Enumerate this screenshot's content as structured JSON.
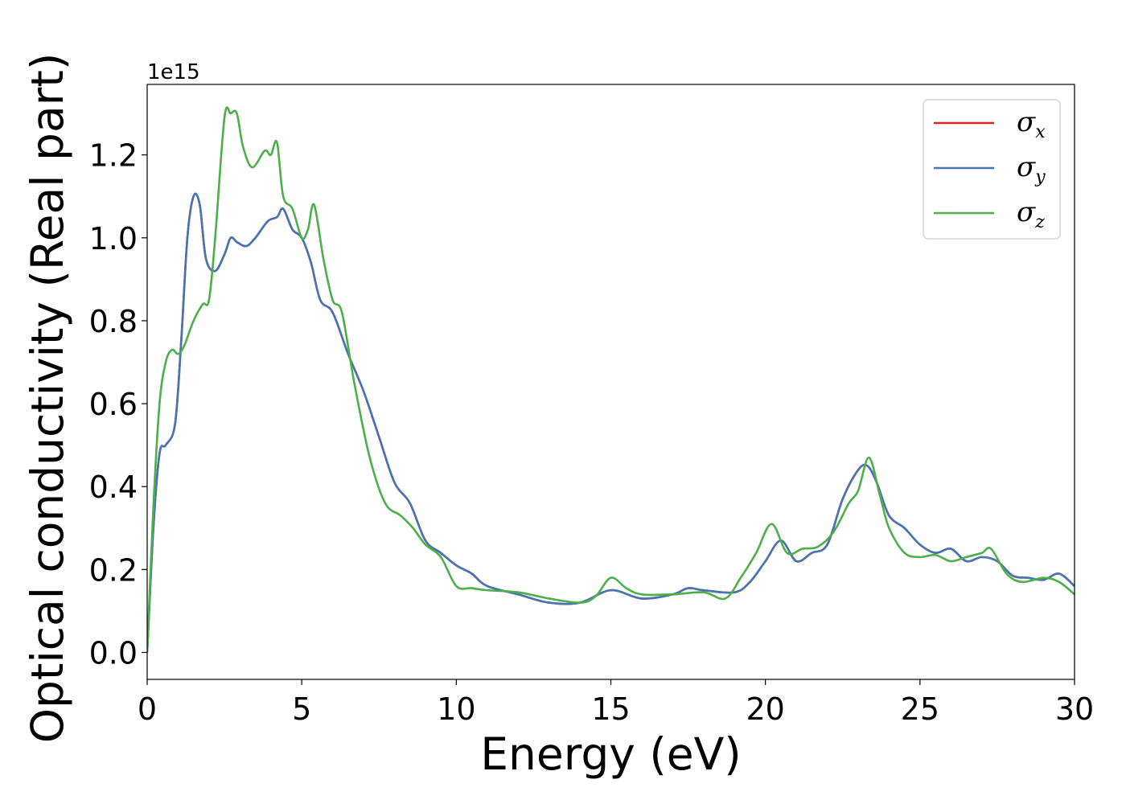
{
  "chart_data": {
    "type": "line",
    "title": "",
    "xlabel": "Energy (eV)",
    "ylabel": "Optical conductivity (Real part)",
    "y_offset_text": "1e15",
    "xlim": [
      0,
      30
    ],
    "ylim": [
      -0.065,
      1.37
    ],
    "x_ticks": [
      0,
      5,
      10,
      15,
      20,
      25,
      30
    ],
    "x_tick_labels": [
      "0",
      "5",
      "10",
      "15",
      "20",
      "25",
      "30"
    ],
    "y_ticks": [
      0.0,
      0.2,
      0.4,
      0.6,
      0.8,
      1.0,
      1.2
    ],
    "y_tick_labels": [
      "0.0",
      "0.2",
      "0.4",
      "0.6",
      "0.8",
      "1.0",
      "1.2"
    ],
    "grid": false,
    "legend_position": "top-right",
    "series": [
      {
        "name": "σx",
        "legend_symbol": "σ",
        "legend_subscript": "x",
        "color": "#d62728",
        "x": [
          0,
          0.2,
          0.4,
          0.6,
          0.9,
          1.1,
          1.3,
          1.5,
          1.7,
          1.9,
          2.2,
          2.5,
          2.7,
          2.9,
          3.2,
          3.5,
          3.9,
          4.2,
          4.4,
          4.7,
          5.0,
          5.3,
          5.6,
          6.0,
          6.5,
          7.0,
          7.5,
          8.0,
          8.5,
          9.0,
          9.5,
          10.0,
          10.5,
          11.0,
          12.0,
          13.0,
          14.0,
          15.0,
          16.0,
          17.0,
          17.5,
          18.0,
          19.0,
          19.5,
          20.0,
          20.5,
          21.0,
          21.5,
          22.0,
          22.5,
          23.0,
          23.3,
          23.6,
          24.0,
          24.5,
          25.0,
          25.5,
          26.0,
          26.5,
          27.0,
          27.5,
          28.0,
          28.5,
          29.0,
          29.5,
          30.0
        ],
        "y": [
          0.0,
          0.3,
          0.48,
          0.5,
          0.55,
          0.75,
          1.0,
          1.1,
          1.08,
          0.95,
          0.92,
          0.96,
          1.0,
          0.99,
          0.98,
          1.0,
          1.04,
          1.05,
          1.07,
          1.02,
          1.0,
          0.94,
          0.85,
          0.82,
          0.72,
          0.63,
          0.52,
          0.41,
          0.36,
          0.27,
          0.24,
          0.21,
          0.19,
          0.16,
          0.14,
          0.12,
          0.12,
          0.15,
          0.13,
          0.14,
          0.155,
          0.15,
          0.145,
          0.17,
          0.22,
          0.27,
          0.22,
          0.24,
          0.26,
          0.37,
          0.44,
          0.45,
          0.41,
          0.33,
          0.3,
          0.26,
          0.24,
          0.25,
          0.22,
          0.23,
          0.22,
          0.185,
          0.18,
          0.175,
          0.19,
          0.16
        ]
      },
      {
        "name": "σy",
        "legend_symbol": "σ",
        "legend_subscript": "y",
        "color": "#4575b4",
        "x": [
          0,
          0.2,
          0.4,
          0.6,
          0.9,
          1.1,
          1.3,
          1.5,
          1.7,
          1.9,
          2.2,
          2.5,
          2.7,
          2.9,
          3.2,
          3.5,
          3.9,
          4.2,
          4.4,
          4.7,
          5.0,
          5.3,
          5.6,
          6.0,
          6.5,
          7.0,
          7.5,
          8.0,
          8.5,
          9.0,
          9.5,
          10.0,
          10.5,
          11.0,
          12.0,
          13.0,
          14.0,
          15.0,
          16.0,
          17.0,
          17.5,
          18.0,
          19.0,
          19.5,
          20.0,
          20.5,
          21.0,
          21.5,
          22.0,
          22.5,
          23.0,
          23.3,
          23.6,
          24.0,
          24.5,
          25.0,
          25.5,
          26.0,
          26.5,
          27.0,
          27.5,
          28.0,
          28.5,
          29.0,
          29.5,
          30.0
        ],
        "y": [
          0.0,
          0.3,
          0.48,
          0.5,
          0.55,
          0.75,
          1.0,
          1.1,
          1.08,
          0.95,
          0.92,
          0.96,
          1.0,
          0.99,
          0.98,
          1.0,
          1.04,
          1.05,
          1.07,
          1.02,
          1.0,
          0.94,
          0.85,
          0.82,
          0.72,
          0.63,
          0.52,
          0.41,
          0.36,
          0.27,
          0.24,
          0.21,
          0.19,
          0.16,
          0.14,
          0.12,
          0.12,
          0.15,
          0.13,
          0.14,
          0.155,
          0.15,
          0.145,
          0.17,
          0.22,
          0.27,
          0.22,
          0.24,
          0.26,
          0.37,
          0.44,
          0.45,
          0.41,
          0.33,
          0.3,
          0.26,
          0.24,
          0.25,
          0.22,
          0.23,
          0.22,
          0.185,
          0.18,
          0.175,
          0.19,
          0.16
        ]
      },
      {
        "name": "σz",
        "legend_symbol": "σ",
        "legend_subscript": "z",
        "color": "#4daf4a",
        "x": [
          0,
          0.2,
          0.4,
          0.6,
          0.8,
          1.0,
          1.2,
          1.5,
          1.8,
          2.0,
          2.2,
          2.5,
          2.7,
          2.9,
          3.1,
          3.4,
          3.8,
          4.0,
          4.2,
          4.4,
          4.7,
          5.0,
          5.2,
          5.4,
          5.7,
          6.0,
          6.3,
          6.7,
          7.2,
          7.7,
          8.2,
          8.6,
          9.0,
          9.5,
          10.0,
          10.5,
          11.0,
          12.0,
          13.0,
          14.0,
          14.5,
          15.0,
          15.5,
          16.0,
          17.0,
          18.0,
          18.7,
          19.2,
          19.7,
          20.2,
          20.7,
          21.2,
          21.7,
          22.2,
          22.7,
          23.0,
          23.35,
          23.7,
          24.0,
          24.5,
          25.0,
          25.5,
          26.0,
          26.5,
          27.0,
          27.3,
          27.8,
          28.3,
          29.0,
          29.5,
          30.0
        ],
        "y": [
          0.0,
          0.35,
          0.6,
          0.7,
          0.73,
          0.72,
          0.74,
          0.8,
          0.84,
          0.85,
          1.0,
          1.29,
          1.3,
          1.3,
          1.22,
          1.17,
          1.21,
          1.2,
          1.23,
          1.1,
          1.07,
          1.0,
          1.02,
          1.08,
          0.95,
          0.85,
          0.82,
          0.65,
          0.47,
          0.36,
          0.33,
          0.3,
          0.26,
          0.23,
          0.16,
          0.155,
          0.15,
          0.145,
          0.13,
          0.12,
          0.135,
          0.18,
          0.155,
          0.14,
          0.14,
          0.145,
          0.13,
          0.18,
          0.24,
          0.31,
          0.24,
          0.25,
          0.255,
          0.29,
          0.36,
          0.39,
          0.47,
          0.38,
          0.3,
          0.24,
          0.23,
          0.235,
          0.22,
          0.23,
          0.24,
          0.25,
          0.19,
          0.17,
          0.18,
          0.17,
          0.14
        ]
      }
    ]
  }
}
